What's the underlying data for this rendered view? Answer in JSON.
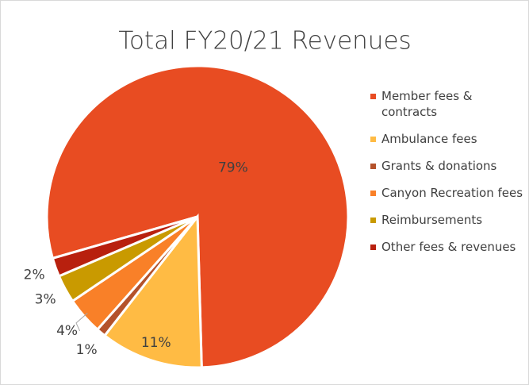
{
  "chart_data": {
    "type": "pie",
    "title": "Total FY20/21 Revenues",
    "categories": [
      "Member fees & contracts",
      "Ambulance fees",
      "Grants & donations",
      "Canyon Recreation fees",
      "Reimbursements",
      "Other fees & revenues"
    ],
    "values": [
      79,
      11,
      1,
      4,
      3,
      2
    ],
    "value_labels": [
      "79%",
      "11%",
      "1%",
      "4%",
      "3%",
      "2%"
    ],
    "colors": [
      "#e84c22",
      "#ffbb44",
      "#b4522b",
      "#f98028",
      "#c99a00",
      "#b8200e"
    ],
    "legend": "right"
  }
}
